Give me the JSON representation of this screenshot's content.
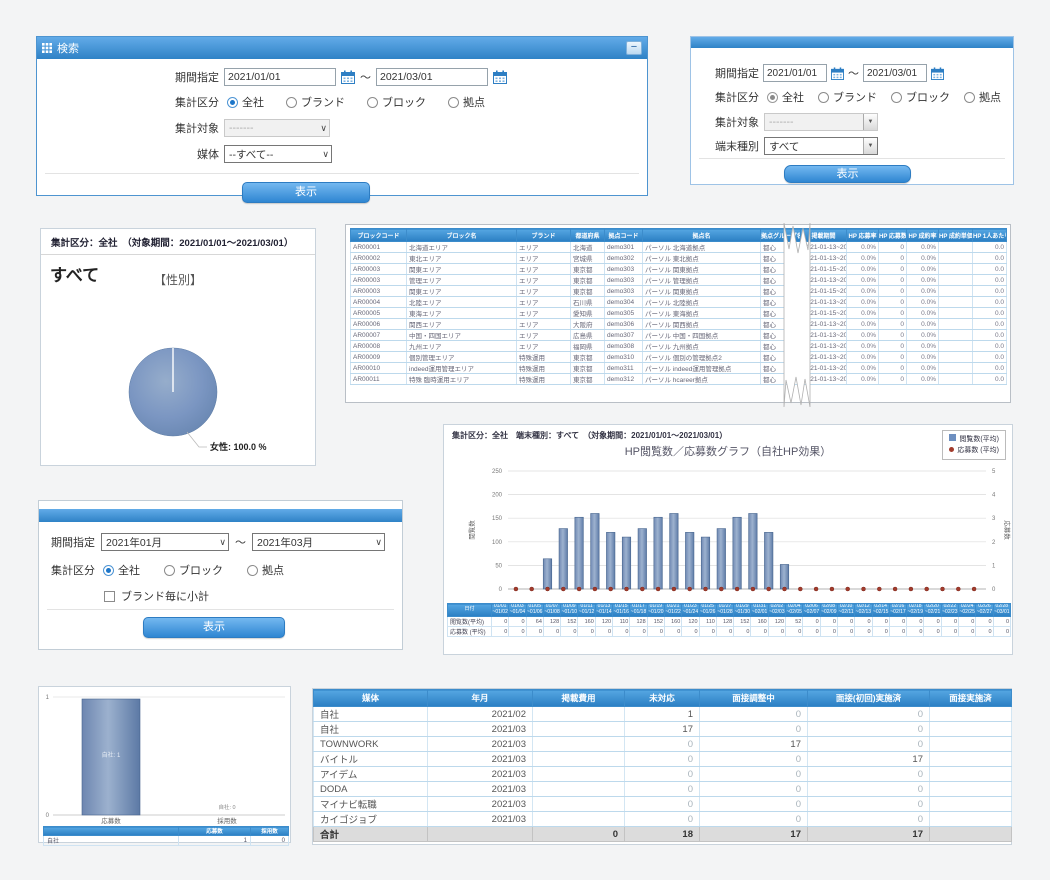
{
  "icons": {
    "select_arrow": "∨",
    "classic_arrow": "▼",
    "minimize_glyph": "−"
  },
  "colors": {
    "accent": "#2f86d2",
    "titlebar_top": "#62abe8",
    "titlebar_bottom": "#2f82c6",
    "bar_fill": "#7b96c0",
    "dot_color": "#a23b2c",
    "pie_fill": "#7b96c2",
    "total_row_bg": "#dcdcdc"
  },
  "search1": {
    "title": "検索",
    "minimize": "−",
    "period_label": "期間指定",
    "period_from": "2021/01/01",
    "period_to": "2021/03/01",
    "tilde": "～",
    "category_label": "集計区分",
    "category_options": [
      {
        "label": "全社",
        "selected": true
      },
      {
        "label": "ブランド",
        "selected": false
      },
      {
        "label": "ブロック",
        "selected": false
      },
      {
        "label": "拠点",
        "selected": false
      }
    ],
    "target_label": "集計対象",
    "target_value": "-------",
    "media_label": "媒体",
    "media_value": "--すべて--",
    "submit": "表示"
  },
  "search2": {
    "period_label": "期間指定",
    "period_from": "2021/01/01",
    "period_to": "2021/03/01",
    "tilde": "～",
    "category_label": "集計区分",
    "category_options": [
      {
        "label": "全社",
        "selected": true
      },
      {
        "label": "ブランド",
        "selected": false
      },
      {
        "label": "ブロック",
        "selected": false
      },
      {
        "label": "拠点",
        "selected": false
      }
    ],
    "target_label": "集計対象",
    "target_value": "-------",
    "terminal_label": "端末種別",
    "terminal_value": "すべて",
    "submit": "表示"
  },
  "pie_panel": {
    "header": "集計区分：全社　（対象期間：2021/01/01～2021/03/01）",
    "title": "すべて",
    "chart_title": "【性別】"
  },
  "block_table": {
    "columns": [
      "ブロックコード",
      "ブロック名",
      "ブランド",
      "都道府県",
      "拠点コード",
      "拠点名",
      "拠点グループ名",
      "掲載期間",
      "HP 応募率",
      "HP 応募数",
      "HP 成約率",
      "HP 成約単価",
      "HP 1人あたり単価"
    ],
    "rows": [
      [
        "AR00001",
        "北海道エリア",
        "エリア",
        "北海道",
        "demo301",
        "パーソル 北海道拠点",
        "都心",
        "2021-01-13~2022-0"
      ],
      [
        "AR00002",
        "東北エリア",
        "エリア",
        "宮城県",
        "demo302",
        "パーソル 東北拠点",
        "都心",
        "2021-01-13~2022-0"
      ],
      [
        "AR00003",
        "関東エリア",
        "エリア",
        "東京都",
        "demo303",
        "パーソル 関東拠点",
        "都心",
        "2021-01-15~2022-0"
      ],
      [
        "AR00003",
        "管理エリア",
        "エリア",
        "東京都",
        "demo303",
        "パーソル 管理拠点",
        "都心",
        "2021-01-13~2022-0"
      ],
      [
        "AR00003",
        "関東エリア",
        "エリア",
        "東京都",
        "demo303",
        "パーソル 関東拠点",
        "都心",
        "2021-01-15~2022-0"
      ],
      [
        "AR00004",
        "北陸エリア",
        "エリア",
        "石川県",
        "demo304",
        "パーソル 北陸拠点",
        "都心",
        "2021-01-13~2022-0"
      ],
      [
        "AR00005",
        "東海エリア",
        "エリア",
        "愛知県",
        "demo305",
        "パーソル 東海拠点",
        "都心",
        "2021-01-15~2022-0"
      ],
      [
        "AR00006",
        "関西エリア",
        "エリア",
        "大阪府",
        "demo306",
        "パーソル 関西拠点",
        "都心",
        "2021-01-13~2022-0"
      ],
      [
        "AR00007",
        "中国・四国エリア",
        "エリア",
        "広島県",
        "demo307",
        "パーソル 中国・四国拠点",
        "都心",
        "2021-01-13~2022-0"
      ],
      [
        "AR00008",
        "九州エリア",
        "エリア",
        "福岡県",
        "demo308",
        "パーソル 九州拠点",
        "都心",
        "2021-01-13~2022-0"
      ],
      [
        "AR00009",
        "個別管理エリア",
        "特殊運用",
        "東京都",
        "demo310",
        "パーソル 個別の管理拠点2",
        "都心",
        "2021-01-13~2022-0"
      ],
      [
        "AR00010",
        "indeed運用管理エリア",
        "特殊運用",
        "東京都",
        "demo311",
        "パーソル indeed運用管理拠点",
        "都心",
        "2021-01-13~2022-0"
      ],
      [
        "AR00011",
        "特殊 臨時運用エリア",
        "特殊運用",
        "東京都",
        "demo312",
        "パーソル hcareer拠点",
        "都心",
        "2021-01-13~2022-0"
      ]
    ],
    "metrics": [
      "0.0%",
      "0",
      "0.0%",
      "",
      "0.0"
    ]
  },
  "hp_panel": {
    "header": "集計区分：全社　端末種別：すべて　（対象期間：2021/01/01～2021/03/01）",
    "title": "HP閲覧数／応募数グラフ（自社HP効果）",
    "legend": [
      {
        "label": "閲覧数(平均)",
        "marker": "square",
        "color": "#6d8fc0"
      },
      {
        "label": "応募数 (平均)",
        "marker": "dot",
        "color": "#a23b2c"
      }
    ],
    "date_header": "日付"
  },
  "form3": {
    "period_label": "期間指定",
    "period_from": "2021年01月",
    "period_to": "2021年03月",
    "tilde": "～",
    "category_label": "集計区分",
    "category_options": [
      {
        "label": "全社",
        "selected": true
      },
      {
        "label": "ブロック",
        "selected": false
      },
      {
        "label": "拠点",
        "selected": false
      }
    ],
    "subtotal_label": "ブランド毎に小計",
    "submit": "表示"
  },
  "small_panel": {
    "bar_label": "自社: 1",
    "zero_label": "自社: 0",
    "table_header": [
      "",
      "応募数",
      "採用数"
    ],
    "table_row": [
      "自社",
      "1",
      "0"
    ]
  },
  "media_table": {
    "columns": [
      "媒体",
      "年月",
      "掲載費用",
      "未対応",
      "面接調整中",
      "面接(初回)実施済",
      "面接実施済"
    ],
    "rows": [
      [
        "自社",
        "2021/02",
        "",
        "1",
        "0",
        "0",
        ""
      ],
      [
        "自社",
        "2021/03",
        "",
        "17",
        "0",
        "0",
        ""
      ],
      [
        "TOWNWORK",
        "2021/03",
        "",
        "0",
        "17",
        "0",
        ""
      ],
      [
        "バイトル",
        "2021/03",
        "",
        "0",
        "0",
        "17",
        ""
      ],
      [
        "アイデム",
        "2021/03",
        "",
        "0",
        "0",
        "0",
        ""
      ],
      [
        "DODA",
        "2021/03",
        "",
        "0",
        "0",
        "0",
        ""
      ],
      [
        "マイナビ転職",
        "2021/03",
        "",
        "0",
        "0",
        "0",
        ""
      ],
      [
        "カイゴジョブ",
        "2021/03",
        "",
        "0",
        "0",
        "0",
        ""
      ]
    ],
    "total_row": [
      "合計",
      "",
      "0",
      "18",
      "17",
      "17",
      ""
    ]
  },
  "chart_data": [
    {
      "type": "pie",
      "title": "【性別】",
      "labels": [
        "女性"
      ],
      "values": [
        100.0
      ],
      "annotation": "女性: 100.0 %",
      "color": "#7b96c2"
    },
    {
      "type": "bar",
      "title": "HP閲覧数／応募数グラフ（自社HP効果）",
      "categories": [
        "01/01~01/02",
        "01/03~01/04",
        "01/05~01/06",
        "01/07~01/08",
        "01/09~01/10",
        "01/11~01/12",
        "01/13~01/14",
        "01/15~01/16",
        "01/17~01/18",
        "01/19~01/20",
        "01/21~01/22",
        "01/23~01/24",
        "01/25~01/26",
        "01/27~01/28",
        "01/29~01/30",
        "01/31~02/01",
        "02/02~02/03",
        "02/04~02/05",
        "02/06~02/07",
        "02/08~02/09",
        "02/10~02/11",
        "02/12~02/13",
        "02/14~02/15",
        "02/16~02/17",
        "02/18~02/19",
        "02/20~02/21",
        "02/22~02/23",
        "02/24~02/25",
        "02/26~02/27",
        "02/28~03/01"
      ],
      "series": [
        {
          "name": "閲覧数(平均)",
          "type": "bar",
          "values": [
            0,
            0,
            64,
            128,
            152,
            160,
            120,
            110,
            128,
            152,
            160,
            120,
            110,
            128,
            152,
            160,
            120,
            52,
            0,
            0,
            0,
            0,
            0,
            0,
            0,
            0,
            0,
            0,
            0,
            0
          ]
        },
        {
          "name": "応募数 (平均)",
          "type": "scatter",
          "values": [
            0,
            0,
            0,
            0,
            0,
            0,
            0,
            0,
            0,
            0,
            0,
            0,
            0,
            0,
            0,
            0,
            0,
            0,
            0,
            0,
            0,
            0,
            0,
            0,
            0,
            0,
            0,
            0,
            0,
            0
          ]
        }
      ],
      "ylabel_left": "閲覧数",
      "ylabel_right": "応募数",
      "ylim_left": [
        0,
        250
      ],
      "ylim_right": [
        0,
        5
      ],
      "grid": true,
      "legend_position": "top-right"
    },
    {
      "type": "bar",
      "title": "",
      "categories": [
        "応募数",
        "採用数"
      ],
      "series": [
        {
          "name": "自社",
          "values": [
            1,
            0
          ]
        }
      ],
      "ylim": [
        0,
        1
      ]
    }
  ]
}
